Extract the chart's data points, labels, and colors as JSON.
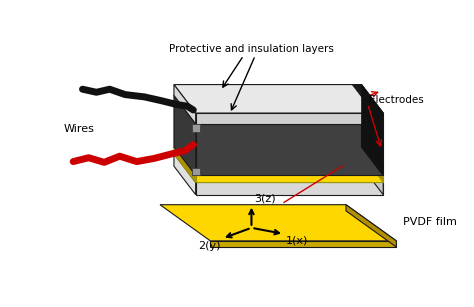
{
  "bg_color": "#ffffff",
  "label_protective": "Protective and insulation layers",
  "label_electrodes": "Electrodes",
  "label_wires": "Wires",
  "label_pvdf": "PVDF film",
  "label_1x": "1(x)",
  "label_2y": "2(y)",
  "label_3z": "3(z)",
  "dark_gray_top": "#555555",
  "dark_gray_side": "#3a3a3a",
  "light_gray_top": "#e2e2e2",
  "light_gray_side": "#c8c8c8",
  "yellow": "#FFD700",
  "dark_yellow": "#b09000",
  "outline": "#1a1a1a",
  "wire_black": "#111111",
  "wire_red": "#cc0000",
  "annot_red": "#cc0000",
  "connector": "#aaaaaa",
  "black_strip": "#222222"
}
